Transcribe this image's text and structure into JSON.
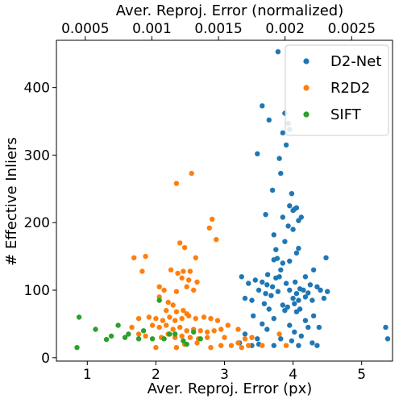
{
  "chart_data": {
    "type": "scatter",
    "title": "",
    "xlabel": "Aver. Reproj. Error (px)",
    "ylabel": "# Effective Inliers",
    "xlabel_top": "Aver. Reproj. Error (normalized)",
    "xlim": [
      0.55,
      5.45
    ],
    "ylim": [
      -5,
      470
    ],
    "x_ticks": [
      1,
      2,
      3,
      4,
      5
    ],
    "x_tick_labels": [
      "1",
      "2",
      "3",
      "4",
      "5"
    ],
    "y_ticks": [
      0,
      100,
      200,
      300,
      400
    ],
    "y_tick_labels": [
      "0",
      "100",
      "200",
      "300",
      "400"
    ],
    "top_scale_factor": 0.000515,
    "top_ticks": [
      0.0005,
      0.001,
      0.0015,
      0.002,
      0.0025
    ],
    "top_tick_labels": [
      "0.0005",
      "0.001",
      "0.0015",
      "0.002",
      "0.0025"
    ],
    "grid": false,
    "legend_position": "top-right",
    "series": [
      {
        "name": "D2-Net",
        "color": "#1f77b4",
        "points": [
          [
            3.78,
            453
          ],
          [
            3.55,
            373
          ],
          [
            3.88,
            362
          ],
          [
            3.65,
            352
          ],
          [
            3.93,
            347
          ],
          [
            3.85,
            333
          ],
          [
            3.95,
            338
          ],
          [
            3.48,
            302
          ],
          [
            3.9,
            315
          ],
          [
            3.8,
            295
          ],
          [
            3.82,
            273
          ],
          [
            3.98,
            243
          ],
          [
            3.7,
            248
          ],
          [
            3.95,
            225
          ],
          [
            4.02,
            220
          ],
          [
            4.08,
            203
          ],
          [
            4.05,
            222
          ],
          [
            4.0,
            218
          ],
          [
            4.12,
            208
          ],
          [
            3.6,
            212
          ],
          [
            3.85,
            208
          ],
          [
            3.93,
            195
          ],
          [
            4.0,
            190
          ],
          [
            3.72,
            182
          ],
          [
            3.88,
            172
          ],
          [
            4.08,
            162
          ],
          [
            3.75,
            160
          ],
          [
            4.05,
            155
          ],
          [
            3.77,
            147
          ],
          [
            3.85,
            140
          ],
          [
            3.82,
            130
          ],
          [
            3.72,
            145
          ],
          [
            3.95,
            143
          ],
          [
            4.48,
            148
          ],
          [
            3.63,
            123
          ],
          [
            3.8,
            120
          ],
          [
            3.75,
            118
          ],
          [
            4.18,
            120
          ],
          [
            4.3,
            130
          ],
          [
            3.25,
            120
          ],
          [
            3.35,
            110
          ],
          [
            3.45,
            115
          ],
          [
            3.55,
            112
          ],
          [
            3.62,
            108
          ],
          [
            3.7,
            105
          ],
          [
            3.9,
            110
          ],
          [
            4.03,
            112
          ],
          [
            4.1,
            102
          ],
          [
            4.25,
            108
          ],
          [
            4.35,
            105
          ],
          [
            3.5,
            100
          ],
          [
            3.6,
            95
          ],
          [
            3.68,
            92
          ],
          [
            3.78,
            98
          ],
          [
            3.95,
            100
          ],
          [
            4.05,
            95
          ],
          [
            4.15,
            100
          ],
          [
            4.22,
            96
          ],
          [
            4.4,
            100
          ],
          [
            4.5,
            98
          ],
          [
            3.3,
            88
          ],
          [
            3.4,
            85
          ],
          [
            4.0,
            88
          ],
          [
            4.08,
            85
          ],
          [
            4.18,
            90
          ],
          [
            3.58,
            80
          ],
          [
            3.85,
            78
          ],
          [
            3.92,
            75
          ],
          [
            4.02,
            80
          ],
          [
            4.28,
            85
          ],
          [
            4.45,
            88
          ],
          [
            3.65,
            72
          ],
          [
            3.88,
            70
          ],
          [
            4.05,
            68
          ],
          [
            4.1,
            72
          ],
          [
            3.42,
            62
          ],
          [
            4.3,
            62
          ],
          [
            3.72,
            58
          ],
          [
            4.18,
            55
          ],
          [
            3.55,
            50
          ],
          [
            3.95,
            48
          ],
          [
            4.22,
            45
          ],
          [
            4.38,
            45
          ],
          [
            3.62,
            42
          ],
          [
            4.02,
            38
          ],
          [
            4.12,
            32
          ],
          [
            3.3,
            35
          ],
          [
            3.48,
            28
          ],
          [
            3.82,
            28
          ],
          [
            3.98,
            25
          ],
          [
            4.28,
            22
          ],
          [
            3.22,
            22
          ],
          [
            3.4,
            18
          ],
          [
            3.5,
            20
          ],
          [
            3.72,
            18
          ],
          [
            4.08,
            18
          ],
          [
            4.35,
            18
          ],
          [
            5.35,
            45
          ],
          [
            5.38,
            28
          ]
        ]
      },
      {
        "name": "R2D2",
        "color": "#ff7f0e",
        "points": [
          [
            2.52,
            273
          ],
          [
            2.3,
            258
          ],
          [
            2.82,
            205
          ],
          [
            2.78,
            192
          ],
          [
            2.88,
            175
          ],
          [
            2.35,
            170
          ],
          [
            2.42,
            163
          ],
          [
            1.68,
            148
          ],
          [
            1.85,
            150
          ],
          [
            2.58,
            148
          ],
          [
            2.32,
            125
          ],
          [
            2.4,
            128
          ],
          [
            2.5,
            128
          ],
          [
            1.8,
            128
          ],
          [
            2.22,
            130
          ],
          [
            2.38,
            118
          ],
          [
            2.48,
            115
          ],
          [
            2.6,
            112
          ],
          [
            2.45,
            105
          ],
          [
            2.55,
            100
          ],
          [
            2.05,
            105
          ],
          [
            2.12,
            100
          ],
          [
            2.3,
            98
          ],
          [
            2.05,
            90
          ],
          [
            2.18,
            82
          ],
          [
            2.25,
            78
          ],
          [
            2.15,
            70
          ],
          [
            2.3,
            68
          ],
          [
            2.4,
            70
          ],
          [
            2.45,
            65
          ],
          [
            1.75,
            58
          ],
          [
            1.9,
            60
          ],
          [
            2.0,
            58
          ],
          [
            2.1,
            55
          ],
          [
            2.2,
            60
          ],
          [
            2.28,
            55
          ],
          [
            2.38,
            58
          ],
          [
            2.48,
            62
          ],
          [
            2.58,
            58
          ],
          [
            2.7,
            60
          ],
          [
            2.8,
            58
          ],
          [
            2.9,
            55
          ],
          [
            3.05,
            48
          ],
          [
            1.65,
            45
          ],
          [
            1.95,
            48
          ],
          [
            2.05,
            45
          ],
          [
            2.15,
            48
          ],
          [
            2.25,
            42
          ],
          [
            2.35,
            45
          ],
          [
            2.45,
            40
          ],
          [
            2.55,
            42
          ],
          [
            2.65,
            40
          ],
          [
            2.75,
            38
          ],
          [
            2.85,
            40
          ],
          [
            2.95,
            42
          ],
          [
            3.2,
            42
          ],
          [
            1.75,
            35
          ],
          [
            1.85,
            32
          ],
          [
            2.08,
            30
          ],
          [
            2.18,
            35
          ],
          [
            2.28,
            30
          ],
          [
            2.38,
            32
          ],
          [
            2.5,
            30
          ],
          [
            2.62,
            28
          ],
          [
            2.75,
            30
          ],
          [
            3.0,
            30
          ],
          [
            3.3,
            28
          ],
          [
            3.4,
            30
          ],
          [
            3.8,
            35
          ],
          [
            2.42,
            20
          ],
          [
            2.6,
            22
          ],
          [
            2.95,
            18
          ],
          [
            3.2,
            22
          ],
          [
            3.35,
            18
          ],
          [
            3.55,
            18
          ],
          [
            3.9,
            18
          ],
          [
            2.0,
            15
          ],
          [
            2.3,
            15
          ],
          [
            2.8,
            15
          ],
          [
            3.1,
            18
          ],
          [
            3.25,
            15
          ]
        ]
      },
      {
        "name": "SIFT",
        "color": "#2ca02c",
        "points": [
          [
            0.85,
            15
          ],
          [
            0.88,
            60
          ],
          [
            1.12,
            42
          ],
          [
            1.28,
            27
          ],
          [
            1.35,
            32
          ],
          [
            1.45,
            48
          ],
          [
            1.55,
            30
          ],
          [
            1.6,
            35
          ],
          [
            1.75,
            28
          ],
          [
            1.82,
            40
          ],
          [
            1.95,
            28
          ],
          [
            2.05,
            85
          ],
          [
            2.12,
            28
          ],
          [
            2.2,
            35
          ],
          [
            2.28,
            35
          ],
          [
            2.4,
            25
          ],
          [
            2.45,
            20
          ],
          [
            2.55,
            38
          ],
          [
            2.65,
            28
          ]
        ]
      }
    ]
  }
}
